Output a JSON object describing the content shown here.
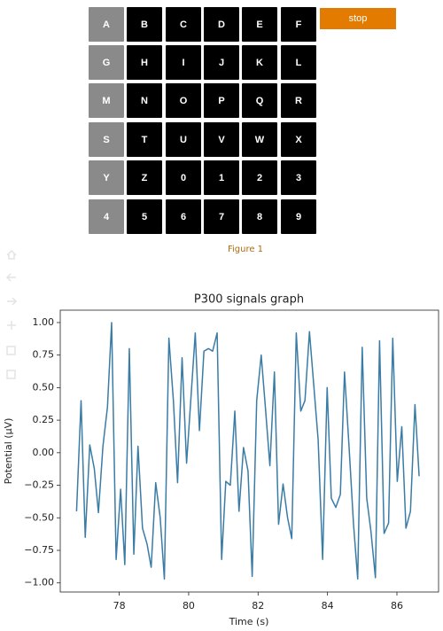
{
  "speller": {
    "cells": [
      [
        "A",
        "B",
        "C",
        "D",
        "E",
        "F"
      ],
      [
        "G",
        "H",
        "I",
        "J",
        "K",
        "L"
      ],
      [
        "M",
        "N",
        "O",
        "P",
        "Q",
        "R"
      ],
      [
        "S",
        "T",
        "U",
        "V",
        "W",
        "X"
      ],
      [
        "Y",
        "Z",
        "0",
        "1",
        "2",
        "3"
      ],
      [
        "4",
        "5",
        "6",
        "7",
        "8",
        "9"
      ]
    ],
    "stop_button": "stop"
  },
  "figure_label": "Figure 1",
  "chart_data": {
    "type": "line",
    "title": "P300 signals graph",
    "x_label": "Time (s)",
    "y_label": "Potential (μV)",
    "x": [
      76.77,
      76.9,
      77.02,
      77.15,
      77.28,
      77.4,
      77.53,
      77.66,
      77.78,
      77.91,
      78.04,
      78.16,
      78.29,
      78.42,
      78.54,
      78.67,
      78.8,
      78.92,
      79.05,
      79.18,
      79.3,
      79.43,
      79.56,
      79.68,
      79.81,
      79.94,
      80.06,
      80.19,
      80.31,
      80.44,
      80.57,
      80.69,
      80.82,
      80.95,
      81.07,
      81.2,
      81.33,
      81.45,
      81.58,
      81.71,
      81.83,
      81.96,
      82.09,
      82.21,
      82.34,
      82.47,
      82.59,
      82.72,
      82.85,
      82.97,
      83.1,
      83.23,
      83.35,
      83.48,
      83.61,
      83.73,
      83.86,
      83.99,
      84.11,
      84.24,
      84.37,
      84.49,
      84.62,
      84.75,
      84.87,
      85.0,
      85.13,
      85.25,
      85.38,
      85.5,
      85.63,
      85.76,
      85.88,
      86.01,
      86.14,
      86.26,
      86.39,
      86.52,
      86.64
    ],
    "values": [
      -0.45,
      0.4,
      -0.65,
      0.06,
      -0.12,
      -0.46,
      0.05,
      0.35,
      1.0,
      -0.82,
      -0.28,
      -0.86,
      0.8,
      -0.78,
      0.05,
      -0.58,
      -0.7,
      -0.88,
      -0.23,
      -0.5,
      -0.97,
      0.88,
      0.4,
      -0.23,
      0.73,
      -0.08,
      0.4,
      0.92,
      0.17,
      0.78,
      0.8,
      0.78,
      0.92,
      -0.82,
      -0.22,
      -0.25,
      0.32,
      -0.45,
      0.04,
      -0.14,
      -0.95,
      0.4,
      0.75,
      0.35,
      -0.1,
      0.62,
      -0.55,
      -0.24,
      -0.5,
      -0.66,
      0.92,
      0.32,
      0.4,
      0.93,
      0.5,
      0.1,
      -0.82,
      0.5,
      -0.35,
      -0.42,
      -0.32,
      0.62,
      0.05,
      -0.55,
      -0.97,
      0.81,
      -0.35,
      -0.6,
      -0.96,
      0.86,
      -0.62,
      -0.54,
      0.88,
      -0.22,
      0.2,
      -0.58,
      -0.45,
      0.37,
      -0.18
    ],
    "color": "#3a7ca5",
    "xlim": [
      76.3,
      87.2
    ],
    "ylim": [
      -1.07,
      1.095
    ],
    "xticks": [
      78,
      80,
      82,
      84,
      86
    ],
    "yticks": [
      {
        "value": -1,
        "label": "−1.00"
      },
      {
        "value": -0.75,
        "label": "−0.75"
      },
      {
        "value": -0.5,
        "label": "−0.50"
      },
      {
        "value": -0.25,
        "label": "−0.25"
      },
      {
        "value": 0,
        "label": "0.00"
      },
      {
        "value": 0.25,
        "label": "0.25"
      },
      {
        "value": 0.5,
        "label": "0.50"
      },
      {
        "value": 0.75,
        "label": "0.75"
      },
      {
        "value": 1,
        "label": "1.00"
      }
    ]
  }
}
